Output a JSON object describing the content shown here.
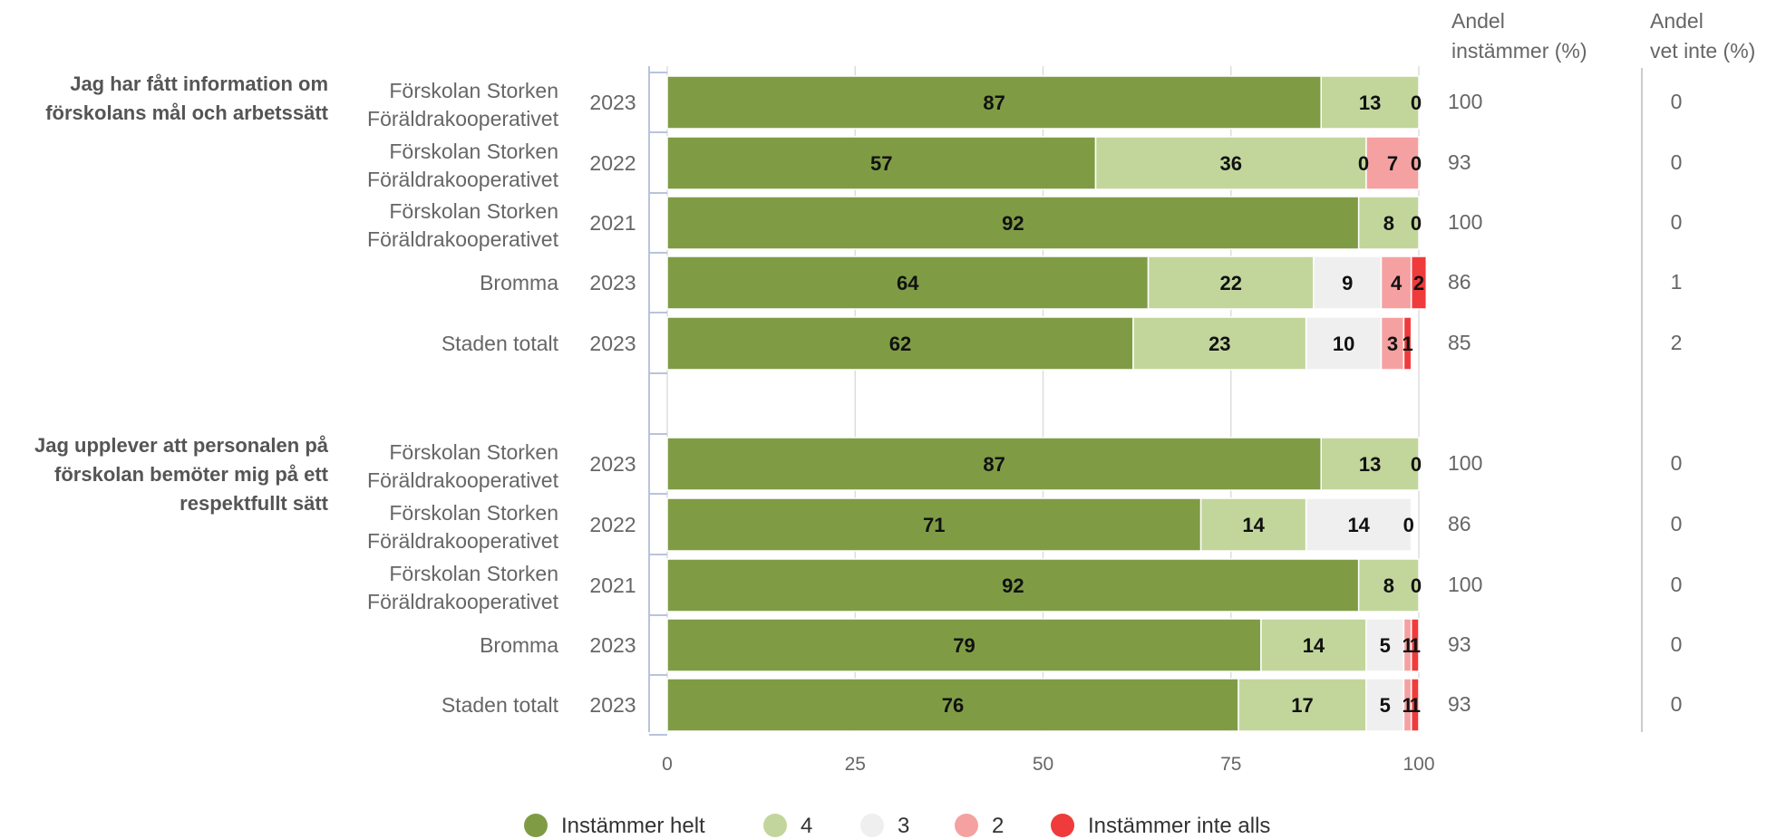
{
  "chart_data": {
    "type": "bar",
    "orientation": "horizontal",
    "stacked": true,
    "xlim": [
      0,
      100
    ],
    "xticks": [
      0,
      25,
      50,
      75,
      100
    ],
    "grid": true,
    "legend_position": "bottom",
    "header_share_agree": "Andel\ninstämmer (%)",
    "header_share_unknown": "Andel\nvet inte (%)",
    "series": [
      {
        "name": "Instämmer helt",
        "color": "#7f9c45"
      },
      {
        "name": "4",
        "color": "#c2d69b"
      },
      {
        "name": "3",
        "color": "#efefef"
      },
      {
        "name": "2",
        "color": "#f5a1a1"
      },
      {
        "name": "Instämmer inte alls",
        "color": "#ef3b3b"
      }
    ],
    "groups": [
      {
        "question": "Jag har fått information om\nförskolans mål och arbetssätt",
        "rows": [
          {
            "unit": "Förskolan Storken\nFöräldrakooperativet",
            "year": "2023",
            "values": [
              87,
              13,
              0,
              0,
              0
            ],
            "labels": [
              "87",
              "13",
              "0",
              "",
              ""
            ],
            "share_agree": "100",
            "share_unknown": "0"
          },
          {
            "unit": "Förskolan Storken\nFöräldrakooperativet",
            "year": "2022",
            "values": [
              57,
              36,
              0,
              7,
              0
            ],
            "labels": [
              "57",
              "36",
              "0",
              "7",
              "0"
            ],
            "share_agree": "93",
            "share_unknown": "0"
          },
          {
            "unit": "Förskolan Storken\nFöräldrakooperativet",
            "year": "2021",
            "values": [
              92,
              8,
              0,
              0,
              0
            ],
            "labels": [
              "92",
              "8",
              "0",
              "",
              ""
            ],
            "share_agree": "100",
            "share_unknown": "0"
          },
          {
            "unit": "Bromma",
            "year": "2023",
            "values": [
              64,
              22,
              9,
              4,
              2
            ],
            "labels": [
              "64",
              "22",
              "9",
              "4",
              "2"
            ],
            "share_agree": "86",
            "share_unknown": "1"
          },
          {
            "unit": "Staden totalt",
            "year": "2023",
            "values": [
              62,
              23,
              10,
              3,
              1
            ],
            "labels": [
              "62",
              "23",
              "10",
              "3",
              "1"
            ],
            "share_agree": "85",
            "share_unknown": "2"
          }
        ]
      },
      {
        "question": "Jag upplever att personalen på\nförskolan bemöter mig på ett\nrespektfullt sätt",
        "rows": [
          {
            "unit": "Förskolan Storken\nFöräldrakooperativet",
            "year": "2023",
            "values": [
              87,
              13,
              0,
              0,
              0
            ],
            "labels": [
              "87",
              "13",
              "0",
              "",
              ""
            ],
            "share_agree": "100",
            "share_unknown": "0"
          },
          {
            "unit": "Förskolan Storken\nFöräldrakooperativet",
            "year": "2022",
            "values": [
              71,
              14,
              14,
              0,
              0
            ],
            "labels": [
              "71",
              "14",
              "14",
              "0",
              ""
            ],
            "share_agree": "86",
            "share_unknown": "0"
          },
          {
            "unit": "Förskolan Storken\nFöräldrakooperativet",
            "year": "2021",
            "values": [
              92,
              8,
              0,
              0,
              0
            ],
            "labels": [
              "92",
              "8",
              "0",
              "",
              ""
            ],
            "share_agree": "100",
            "share_unknown": "0"
          },
          {
            "unit": "Bromma",
            "year": "2023",
            "values": [
              79,
              14,
              5,
              1,
              1
            ],
            "labels": [
              "79",
              "14",
              "5",
              "1",
              "1"
            ],
            "share_agree": "93",
            "share_unknown": "0"
          },
          {
            "unit": "Staden totalt",
            "year": "2023",
            "values": [
              76,
              17,
              5,
              1,
              1
            ],
            "labels": [
              "76",
              "17",
              "5",
              "1",
              "1"
            ],
            "share_agree": "93",
            "share_unknown": "0"
          }
        ]
      }
    ]
  }
}
